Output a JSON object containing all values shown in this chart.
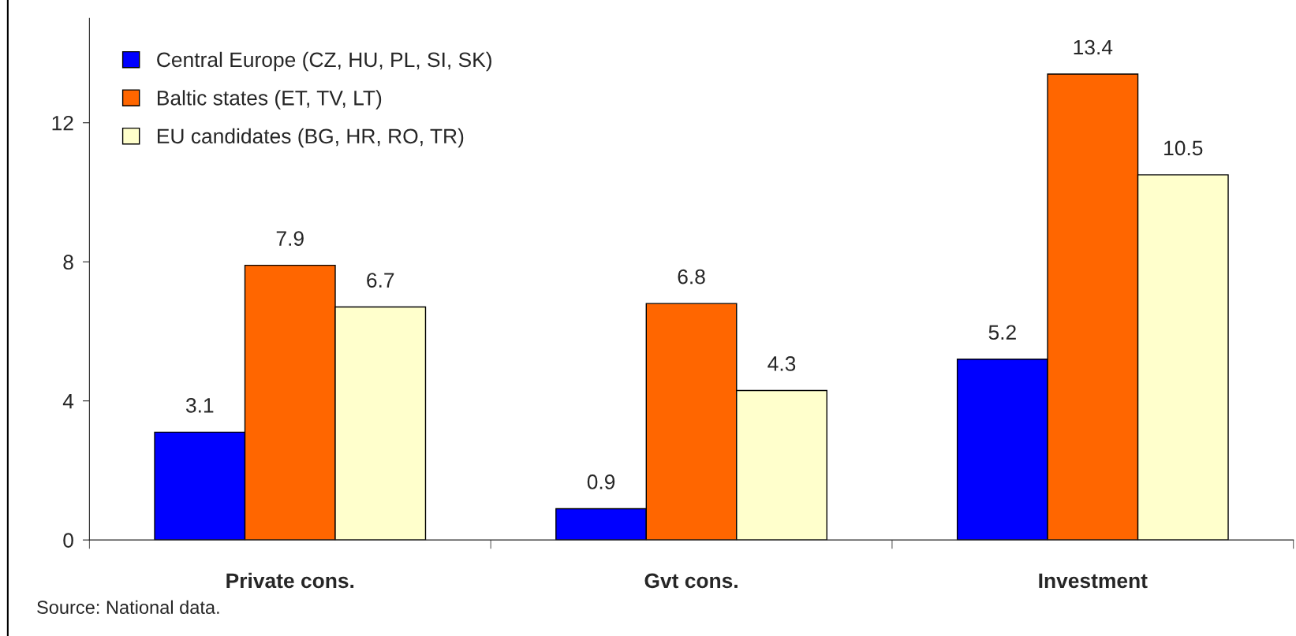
{
  "chart_data": {
    "type": "bar",
    "categories": [
      "Private cons.",
      "Gvt cons.",
      "Investment"
    ],
    "series": [
      {
        "name": "Central Europe (CZ, HU, PL, SI, SK)",
        "color": "#0000ff",
        "values": [
          3.1,
          0.9,
          5.2
        ]
      },
      {
        "name": "Baltic states (ET, TV, LT)",
        "color": "#ff6600",
        "values": [
          7.9,
          6.8,
          13.4
        ]
      },
      {
        "name": "EU candidates (BG, HR, RO, TR)",
        "color": "#ffffcc",
        "values": [
          6.7,
          4.3,
          10.5
        ]
      }
    ],
    "ylim": [
      0,
      15
    ],
    "yticks": [
      0,
      4,
      8,
      12
    ],
    "grid": false,
    "legend": "top left",
    "data_labels": true,
    "annotations": [
      "Source: National data."
    ]
  }
}
